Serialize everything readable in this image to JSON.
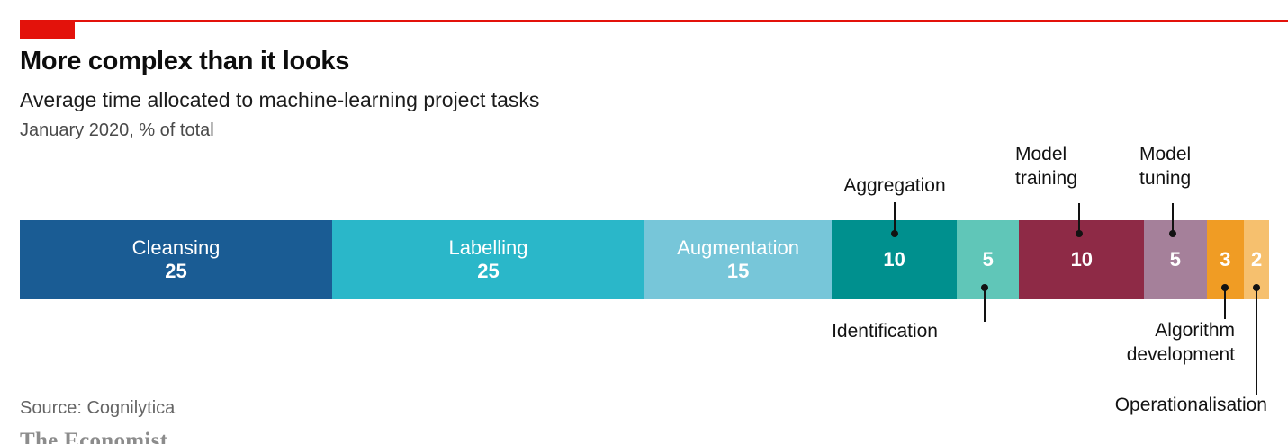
{
  "header": {
    "title": "More complex than it looks",
    "subtitle": "Average time allocated to machine-learning project tasks",
    "period": "January 2020, % of total"
  },
  "footer": {
    "source": "Source: Cognilytica",
    "brand": "The Economist"
  },
  "colors": {
    "accent_red": "#e3120b",
    "leader_line": "#121212",
    "bar_label_text": "#ffffff"
  },
  "chart_data": {
    "type": "bar",
    "variant": "horizontal-stacked-100-percent",
    "title": "More complex than it looks",
    "subtitle": "Average time allocated to machine-learning project tasks",
    "period": "January 2020",
    "unit": "% of total",
    "total": 100,
    "legend_position": "none",
    "grid": false,
    "segments": [
      {
        "label": "Cleansing",
        "value": 25,
        "color": "#1a5c94",
        "label_position": "inside"
      },
      {
        "label": "Labelling",
        "value": 25,
        "color": "#2ab7c9",
        "label_position": "inside"
      },
      {
        "label": "Augmentation",
        "value": 15,
        "color": "#77c6d9",
        "label_position": "inside"
      },
      {
        "label": "Aggregation",
        "value": 10,
        "color": "#00908e",
        "label_position": "above"
      },
      {
        "label": "Identification",
        "value": 5,
        "color": "#60c6b8",
        "label_position": "below"
      },
      {
        "label": "Model training",
        "value": 10,
        "color": "#8e2a46",
        "label_position": "above"
      },
      {
        "label": "Model tuning",
        "value": 5,
        "color": "#a5809a",
        "label_position": "above"
      },
      {
        "label": "Algorithm development",
        "value": 3,
        "color": "#f09c24",
        "label_position": "below"
      },
      {
        "label": "Operationalisation",
        "value": 2,
        "color": "#f6c06e",
        "label_position": "below"
      }
    ]
  }
}
